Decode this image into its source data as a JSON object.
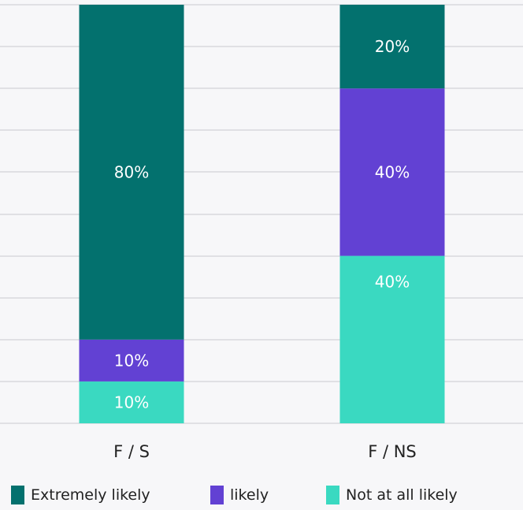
{
  "chart_data": {
    "type": "bar",
    "stacked": true,
    "categories": [
      "F / S",
      "F / NS"
    ],
    "series": [
      {
        "name": "Not at all likely",
        "values": [
          10,
          40
        ],
        "labels": [
          "10%",
          "40%"
        ],
        "color": "#3ad9c1"
      },
      {
        "name": "likely",
        "values": [
          10,
          40
        ],
        "labels": [
          "10%",
          "40%"
        ],
        "color": "#6241d3"
      },
      {
        "name": "Extremely likely",
        "values": [
          80,
          20
        ],
        "labels": [
          "80%",
          "20%"
        ],
        "color": "#03716e"
      }
    ],
    "ylim": [
      0,
      100
    ],
    "grid": true,
    "legend_position": "bottom",
    "legend_order": [
      "Extremely likely",
      "likely",
      "Not at all likely"
    ]
  }
}
